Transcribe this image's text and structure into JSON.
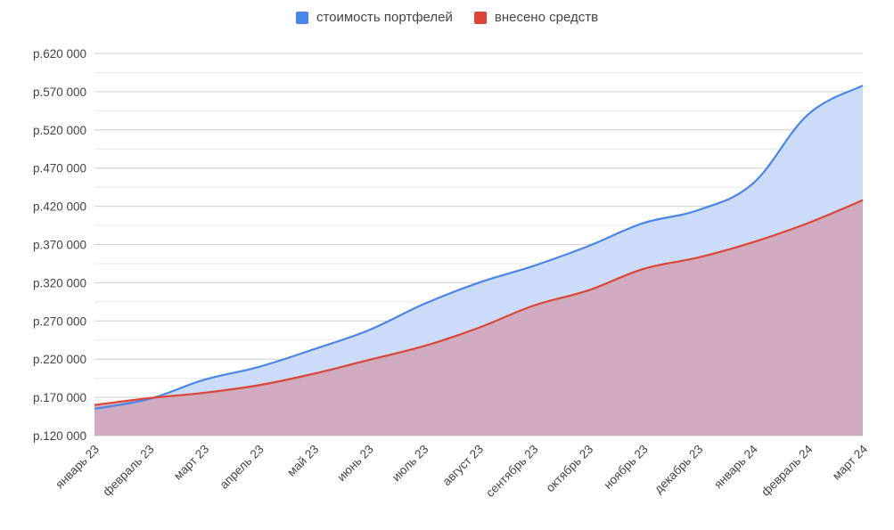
{
  "chart_data": {
    "type": "area",
    "categories": [
      "январь 23",
      "февраль 23",
      "март 23",
      "апрель 23",
      "май 23",
      "июнь 23",
      "июль 23",
      "август 23",
      "сентябрь 23",
      "октябрь 23",
      "ноябрь 23",
      "декабрь 23",
      "январь 24",
      "февраль 24",
      "март 24"
    ],
    "series": [
      {
        "name": "стоимость портфелей",
        "color": "#4a86e8",
        "fill": "#c9daf8",
        "values": [
          155000,
          168000,
          193000,
          210000,
          233000,
          258000,
          292000,
          320000,
          342000,
          368000,
          398000,
          415000,
          450000,
          540000,
          578000
        ]
      },
      {
        "name": "внесено средств",
        "color": "#db4437",
        "fill": "#d0a5b8",
        "values": [
          160000,
          169000,
          176000,
          186000,
          201000,
          219000,
          237000,
          261000,
          290000,
          310000,
          338000,
          353000,
          373000,
          398000,
          428000
        ]
      }
    ],
    "y_ticks": [
      "р.120 000",
      "р.170 000",
      "р.220 000",
      "р.270 000",
      "р.320 000",
      "р.370 000",
      "р.420 000",
      "р.470 000",
      "р.520 000",
      "р.570 000",
      "р.620 000"
    ],
    "ylim": [
      120000,
      620000
    ],
    "legend_position": "top-center",
    "grid": true
  }
}
